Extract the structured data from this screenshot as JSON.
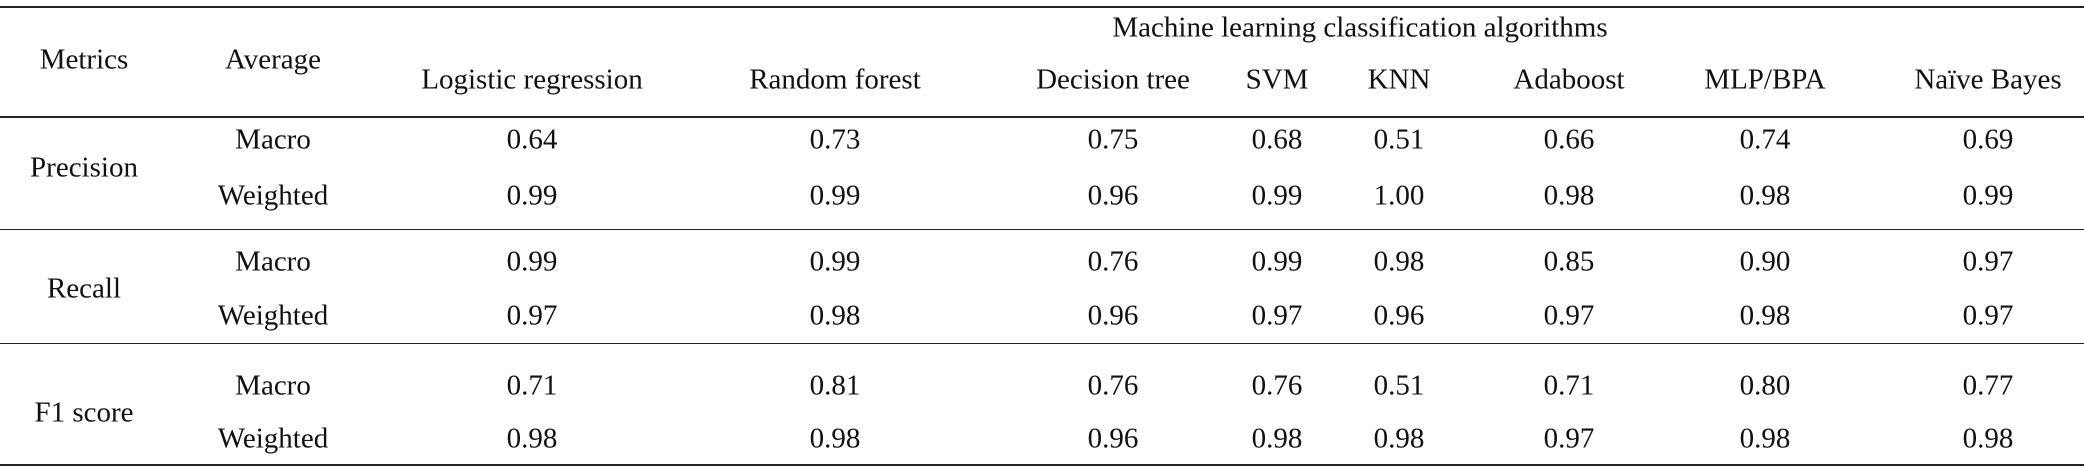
{
  "table": {
    "group_header": "Machine learning classification algorithms",
    "columns": [
      "Metrics",
      "Average",
      "Logistic regression",
      "Random forest",
      "Decision tree",
      "SVM",
      "KNN",
      "Adaboost",
      "MLP/BPA",
      "Naïve Bayes"
    ],
    "rows": [
      {
        "metric": "Precision",
        "lines": [
          {
            "average": "Macro",
            "values": [
              "0.64",
              "0.73",
              "0.75",
              "0.68",
              "0.51",
              "0.66",
              "0.74",
              "0.69"
            ]
          },
          {
            "average": "Weighted",
            "values": [
              "0.99",
              "0.99",
              "0.96",
              "0.99",
              "1.00",
              "0.98",
              "0.98",
              "0.99"
            ]
          }
        ]
      },
      {
        "metric": "Recall",
        "lines": [
          {
            "average": "Macro",
            "values": [
              "0.99",
              "0.99",
              "0.76",
              "0.99",
              "0.98",
              "0.85",
              "0.90",
              "0.97"
            ]
          },
          {
            "average": "Weighted",
            "values": [
              "0.97",
              "0.98",
              "0.96",
              "0.97",
              "0.96",
              "0.97",
              "0.98",
              "0.97"
            ]
          }
        ]
      },
      {
        "metric": "F1 score",
        "lines": [
          {
            "average": "Macro",
            "values": [
              "0.71",
              "0.81",
              "0.76",
              "0.76",
              "0.51",
              "0.71",
              "0.80",
              "0.77"
            ]
          },
          {
            "average": "Weighted",
            "values": [
              "0.98",
              "0.98",
              "0.96",
              "0.98",
              "0.98",
              "0.97",
              "0.98",
              "0.98"
            ]
          }
        ]
      }
    ]
  }
}
